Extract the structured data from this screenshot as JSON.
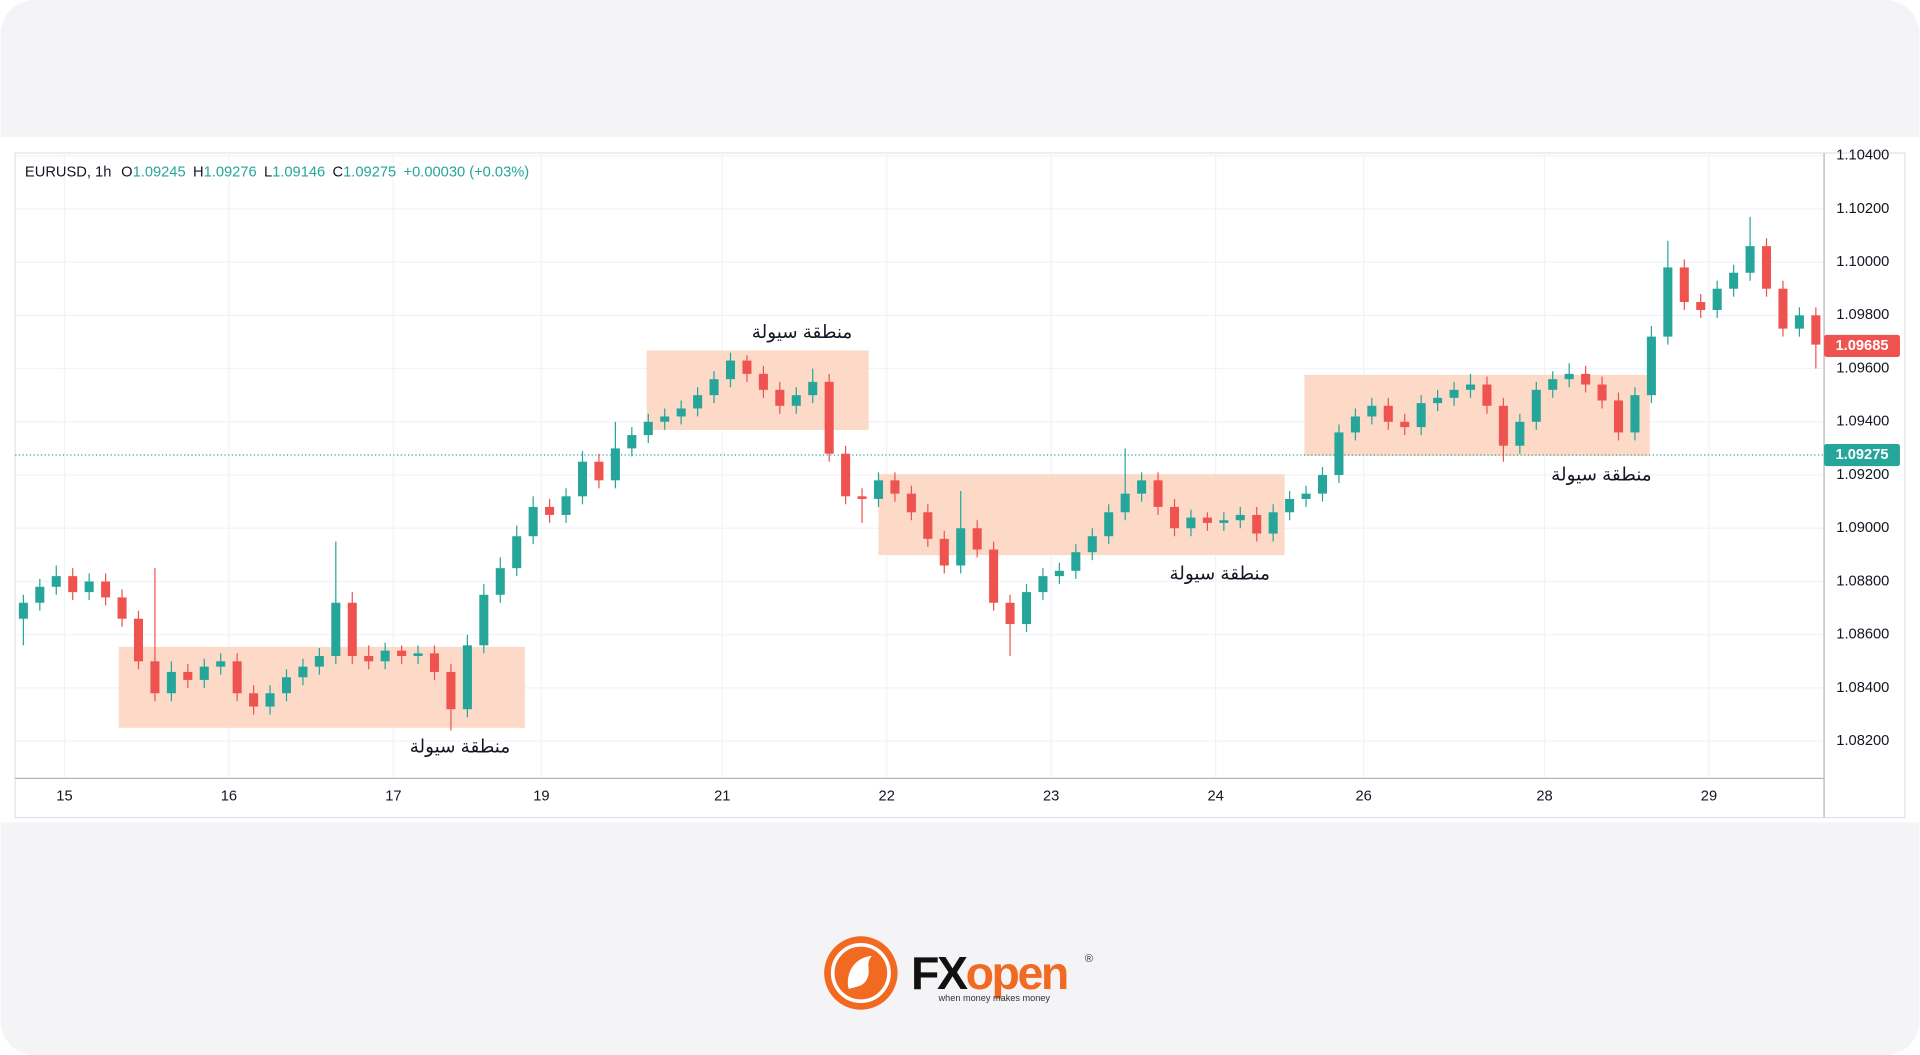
{
  "chart_data": {
    "type": "candlestick",
    "header": {
      "symbol": "EURUSD, 1h",
      "ohlc": [
        {
          "label": "O",
          "value": "1.09245"
        },
        {
          "label": "H",
          "value": "1.09276"
        },
        {
          "label": "L",
          "value": "1.09146"
        },
        {
          "label": "C",
          "value": "1.09275"
        }
      ],
      "change": "+0.00030 (+0.03%)"
    },
    "up_color": "#26a69a",
    "down_color": "#ef5350",
    "grid": true,
    "xlim": [
      0,
      110
    ],
    "ylim": [
      1.0806,
      1.1041
    ],
    "xticks": [
      {
        "value": 3,
        "label": "15"
      },
      {
        "value": 13,
        "label": "16"
      },
      {
        "value": 23,
        "label": "17"
      },
      {
        "value": 32,
        "label": "19"
      },
      {
        "value": 43,
        "label": "21"
      },
      {
        "value": 53,
        "label": "22"
      },
      {
        "value": 63,
        "label": "23"
      },
      {
        "value": 73,
        "label": "24"
      },
      {
        "value": 82,
        "label": "26"
      },
      {
        "value": 93,
        "label": "28"
      },
      {
        "value": 103,
        "label": "29"
      }
    ],
    "yticks": [
      {
        "value": 1.082,
        "label": "1.08200"
      },
      {
        "value": 1.084,
        "label": "1.08400"
      },
      {
        "value": 1.086,
        "label": "1.08600"
      },
      {
        "value": 1.088,
        "label": "1.08800"
      },
      {
        "value": 1.09,
        "label": "1.09000"
      },
      {
        "value": 1.092,
        "label": "1.09200"
      },
      {
        "value": 1.094,
        "label": "1.09400"
      },
      {
        "value": 1.096,
        "label": "1.09600"
      },
      {
        "value": 1.098,
        "label": "1.09800"
      },
      {
        "value": 1.1,
        "label": "1.10000"
      },
      {
        "value": 1.102,
        "label": "1.10200"
      },
      {
        "value": 1.104,
        "label": "1.10400"
      }
    ],
    "open": [
      1.0866,
      1.0872,
      1.0878,
      1.0882,
      1.0876,
      1.088,
      1.0874,
      1.0866,
      1.085,
      1.0838,
      1.0846,
      1.0843,
      1.0848,
      1.085,
      1.0838,
      1.0833,
      1.0838,
      1.0844,
      1.0848,
      1.0852,
      1.0872,
      1.0852,
      1.085,
      1.0854,
      1.0852,
      1.0853,
      1.0846,
      1.0832,
      1.0856,
      1.0875,
      1.0885,
      1.0897,
      1.0908,
      1.0905,
      1.0912,
      1.0925,
      1.0918,
      1.093,
      1.0935,
      1.094,
      1.0942,
      1.0945,
      1.095,
      1.0956,
      1.0963,
      1.0958,
      1.0952,
      1.0946,
      1.095,
      1.0955,
      1.0928,
      1.0912,
      1.0911,
      1.0918,
      1.0913,
      1.0906,
      1.0896,
      1.0886,
      1.09,
      1.0892,
      1.0872,
      1.0864,
      1.0876,
      1.0882,
      1.0884,
      1.0891,
      1.0897,
      1.0906,
      1.0913,
      1.0918,
      1.0908,
      1.09,
      1.0904,
      1.0902,
      1.0903,
      1.0905,
      1.0898,
      1.0906,
      1.0911,
      1.0913,
      1.092,
      1.0936,
      1.0942,
      1.0946,
      1.094,
      1.0938,
      1.0947,
      1.0949,
      1.0952,
      1.0954,
      1.0946,
      1.0931,
      1.094,
      1.0952,
      1.0956,
      1.0958,
      1.0954,
      1.0948,
      1.0936,
      1.095,
      1.0972,
      1.0998,
      1.0985,
      1.0982,
      1.099,
      1.0996,
      1.1006,
      1.099,
      1.0975,
      1.098
    ],
    "high": [
      1.0875,
      1.0881,
      1.0886,
      1.0885,
      1.0883,
      1.0883,
      1.0877,
      1.0869,
      1.0885,
      1.085,
      1.0849,
      1.0851,
      1.0853,
      1.0853,
      1.0841,
      1.0841,
      1.0847,
      1.0851,
      1.0855,
      1.0895,
      1.0876,
      1.0856,
      1.0857,
      1.0856,
      1.0856,
      1.0856,
      1.0849,
      1.086,
      1.0879,
      1.0889,
      1.0901,
      1.0912,
      1.0911,
      1.0915,
      1.0929,
      1.0928,
      1.094,
      1.0938,
      1.0943,
      1.0945,
      1.0948,
      1.0953,
      1.0959,
      1.0966,
      1.0965,
      1.0961,
      1.0955,
      1.0953,
      1.096,
      1.0958,
      1.0931,
      1.0915,
      1.0921,
      1.0921,
      1.0916,
      1.0909,
      1.0899,
      1.0914,
      1.0903,
      1.0895,
      1.0875,
      1.0879,
      1.0885,
      1.0887,
      1.0894,
      1.09,
      1.0909,
      1.093,
      1.0921,
      1.0921,
      1.0911,
      1.0907,
      1.0906,
      1.0906,
      1.0908,
      1.0908,
      1.0909,
      1.0914,
      1.0916,
      1.0923,
      1.0939,
      1.0945,
      1.0949,
      1.0949,
      1.0943,
      1.095,
      1.0952,
      1.0955,
      1.0958,
      1.0957,
      1.0949,
      1.0943,
      1.0955,
      1.0959,
      1.0962,
      1.0961,
      1.0957,
      1.0951,
      1.0953,
      1.0976,
      1.1008,
      1.1001,
      1.0988,
      1.0993,
      1.0999,
      1.1017,
      1.1009,
      1.0993,
      1.0983,
      1.0983
    ],
    "low": [
      1.0856,
      1.0869,
      1.0875,
      1.0873,
      1.0873,
      1.0871,
      1.0863,
      1.0847,
      1.0835,
      1.0835,
      1.084,
      1.084,
      1.0845,
      1.0835,
      1.083,
      1.083,
      1.0835,
      1.0841,
      1.0845,
      1.0849,
      1.0849,
      1.0847,
      1.0847,
      1.0849,
      1.0849,
      1.0843,
      1.0824,
      1.0829,
      1.0853,
      1.0872,
      1.0882,
      1.0894,
      1.0902,
      1.0902,
      1.0909,
      1.0915,
      1.0915,
      1.0927,
      1.0932,
      1.0937,
      1.0939,
      1.0942,
      1.0947,
      1.0953,
      1.0955,
      1.0949,
      1.0943,
      1.0943,
      1.0947,
      1.0925,
      1.0909,
      1.0902,
      1.0908,
      1.091,
      1.0903,
      1.0893,
      1.0883,
      1.0883,
      1.0889,
      1.0869,
      1.0852,
      1.0861,
      1.0873,
      1.0879,
      1.0881,
      1.0888,
      1.0894,
      1.0903,
      1.091,
      1.0905,
      1.0897,
      1.0897,
      1.0899,
      1.0899,
      1.09,
      1.0895,
      1.0895,
      1.0903,
      1.0908,
      1.091,
      1.0917,
      1.0933,
      1.0939,
      1.0937,
      1.0935,
      1.0935,
      1.0944,
      1.0946,
      1.0949,
      1.0943,
      1.0925,
      1.0928,
      1.0937,
      1.0949,
      1.0953,
      1.0951,
      1.0945,
      1.0933,
      1.0933,
      1.0947,
      1.0969,
      1.0982,
      1.0979,
      1.0979,
      1.0987,
      1.0993,
      1.0987,
      1.0972,
      1.0972,
      1.096
    ],
    "close": [
      1.0872,
      1.0878,
      1.0882,
      1.0876,
      1.088,
      1.0874,
      1.0866,
      1.085,
      1.0838,
      1.0846,
      1.0843,
      1.0848,
      1.085,
      1.0838,
      1.0833,
      1.0838,
      1.0844,
      1.0848,
      1.0852,
      1.0872,
      1.0852,
      1.085,
      1.0854,
      1.0852,
      1.0853,
      1.0846,
      1.0832,
      1.0856,
      1.0875,
      1.0885,
      1.0897,
      1.0908,
      1.0905,
      1.0912,
      1.0925,
      1.0918,
      1.093,
      1.0935,
      1.094,
      1.0942,
      1.0945,
      1.095,
      1.0956,
      1.0963,
      1.0958,
      1.0952,
      1.0946,
      1.095,
      1.0955,
      1.0928,
      1.0912,
      1.0911,
      1.0918,
      1.0913,
      1.0906,
      1.0896,
      1.0886,
      1.09,
      1.0892,
      1.0872,
      1.0864,
      1.0876,
      1.0882,
      1.0884,
      1.0891,
      1.0897,
      1.0906,
      1.0913,
      1.0918,
      1.0908,
      1.09,
      1.0904,
      1.0902,
      1.0903,
      1.0905,
      1.0898,
      1.0906,
      1.0911,
      1.0913,
      1.092,
      1.0936,
      1.0942,
      1.0946,
      1.094,
      1.0938,
      1.0947,
      1.0949,
      1.0952,
      1.0954,
      1.0946,
      1.0931,
      1.094,
      1.0952,
      1.0956,
      1.0958,
      1.0954,
      1.0948,
      1.0936,
      1.095,
      1.0972,
      1.0998,
      1.0985,
      1.0982,
      1.099,
      1.0996,
      1.1006,
      1.099,
      1.0975,
      1.098,
      1.0969
    ],
    "last_price": 1.09685,
    "last_price_color": "#ef5350",
    "close_line": 1.09275,
    "close_line_color": "#26a69a",
    "zone_color": "#fbd3bd",
    "zones": [
      {
        "label": "منطقة سيولة",
        "xlim": [
          6.3,
          31.0
        ],
        "ylim": [
          1.0825,
          1.08554
        ]
      },
      {
        "label": "منطقة سيولة",
        "xlim": [
          38.4,
          51.9
        ],
        "ylim": [
          1.09369,
          1.09668
        ]
      },
      {
        "label": "منطقة سيولة",
        "xlim": [
          52.5,
          77.2
        ],
        "ylim": [
          1.08899,
          1.09203
        ]
      },
      {
        "label": "منطقة سيولة",
        "xlim": [
          78.4,
          99.4
        ],
        "ylim": [
          1.09272,
          1.09576
        ]
      }
    ]
  },
  "logo": {
    "fx": "FX",
    "open": "open",
    "tagline": "when money makes money"
  }
}
